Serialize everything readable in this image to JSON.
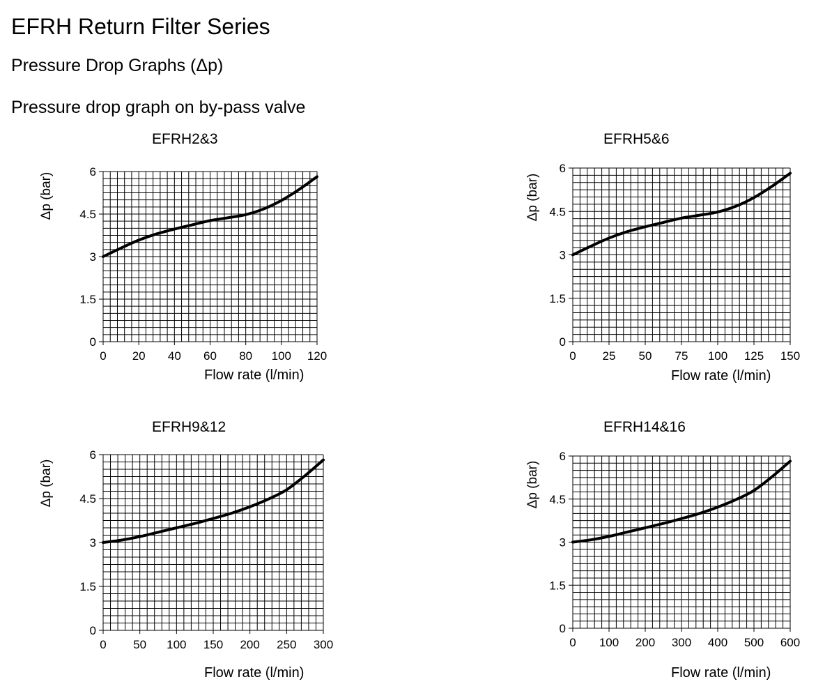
{
  "header": {
    "title": "EFRH Return Filter Series",
    "subtitle": "Pressure Drop Graphs (Δp)",
    "section": "Pressure drop graph on by-pass valve"
  },
  "chart_data": [
    {
      "type": "line",
      "title": "EFRH2&3",
      "xlabel": "Flow rate (l/min)",
      "ylabel": "Δp (bar)",
      "xlim": [
        0,
        120
      ],
      "ylim": [
        0,
        6
      ],
      "xticks": [
        0,
        20,
        40,
        60,
        80,
        100,
        120
      ],
      "xtick_labels": [
        "0",
        "20",
        "40",
        "60",
        "80",
        "100",
        "120"
      ],
      "yticks": [
        0,
        1.5,
        3,
        4.5,
        6
      ],
      "ytick_labels": [
        "0",
        "1.5",
        "3",
        "4.5",
        "6"
      ],
      "grid": true,
      "series": [
        {
          "x": [
            0,
            10,
            20,
            30,
            40,
            50,
            60,
            70,
            80,
            90,
            100,
            110,
            120
          ],
          "y": [
            3.0,
            3.3,
            3.58,
            3.8,
            3.97,
            4.12,
            4.27,
            4.37,
            4.48,
            4.68,
            4.98,
            5.37,
            5.82
          ]
        }
      ]
    },
    {
      "type": "line",
      "title": "EFRH5&6",
      "xlabel": "Flow rate (l/min)",
      "ylabel": "Δp (bar)",
      "xlim": [
        0,
        150
      ],
      "ylim": [
        0,
        6
      ],
      "xticks": [
        0,
        25,
        50,
        75,
        100,
        125,
        150
      ],
      "xtick_labels": [
        "0",
        "25",
        "50",
        "75",
        "100",
        "125",
        "150"
      ],
      "yticks": [
        0,
        1.5,
        3,
        4.5,
        6
      ],
      "ytick_labels": [
        "0",
        "1.5",
        "3",
        "4.5",
        "6"
      ],
      "grid": true,
      "series": [
        {
          "x": [
            0,
            12.5,
            25,
            37.5,
            50,
            62.5,
            75,
            87.5,
            100,
            112.5,
            125,
            137.5,
            150
          ],
          "y": [
            3.0,
            3.3,
            3.58,
            3.8,
            3.97,
            4.12,
            4.27,
            4.37,
            4.48,
            4.68,
            4.98,
            5.37,
            5.82
          ]
        }
      ]
    },
    {
      "type": "line",
      "title": "EFRH9&12",
      "xlabel": "Flow rate (l/min)",
      "ylabel": "Δp (bar)",
      "xlim": [
        0,
        300
      ],
      "ylim": [
        0,
        6
      ],
      "xticks": [
        0,
        50,
        100,
        150,
        200,
        250,
        300
      ],
      "xtick_labels": [
        "0",
        "50",
        "100",
        "150",
        "200",
        "250",
        "300"
      ],
      "yticks": [
        0,
        1.5,
        3,
        4.5,
        6
      ],
      "ytick_labels": [
        "0",
        "1.5",
        "3",
        "4.5",
        "6"
      ],
      "grid": true,
      "series": [
        {
          "x": [
            0,
            25,
            50,
            75,
            100,
            125,
            150,
            175,
            200,
            225,
            250,
            275,
            300
          ],
          "y": [
            3.0,
            3.08,
            3.2,
            3.35,
            3.5,
            3.65,
            3.82,
            4.0,
            4.22,
            4.48,
            4.8,
            5.28,
            5.82
          ]
        }
      ]
    },
    {
      "type": "line",
      "title": "EFRH14&16",
      "xlabel": "Flow rate (l/min)",
      "ylabel": "Δp (bar)",
      "xlim": [
        0,
        600
      ],
      "ylim": [
        0,
        6
      ],
      "xticks": [
        0,
        100,
        200,
        300,
        400,
        500,
        600
      ],
      "xtick_labels": [
        "0",
        "100",
        "200",
        "300",
        "400",
        "500",
        "600"
      ],
      "yticks": [
        0,
        1.5,
        3,
        4.5,
        6
      ],
      "ytick_labels": [
        "0",
        "1.5",
        "3",
        "4.5",
        "6"
      ],
      "grid": true,
      "series": [
        {
          "x": [
            0,
            50,
            100,
            150,
            200,
            250,
            300,
            350,
            400,
            450,
            500,
            550,
            600
          ],
          "y": [
            3.0,
            3.08,
            3.2,
            3.35,
            3.5,
            3.65,
            3.82,
            4.0,
            4.22,
            4.48,
            4.8,
            5.28,
            5.82
          ]
        }
      ]
    }
  ]
}
